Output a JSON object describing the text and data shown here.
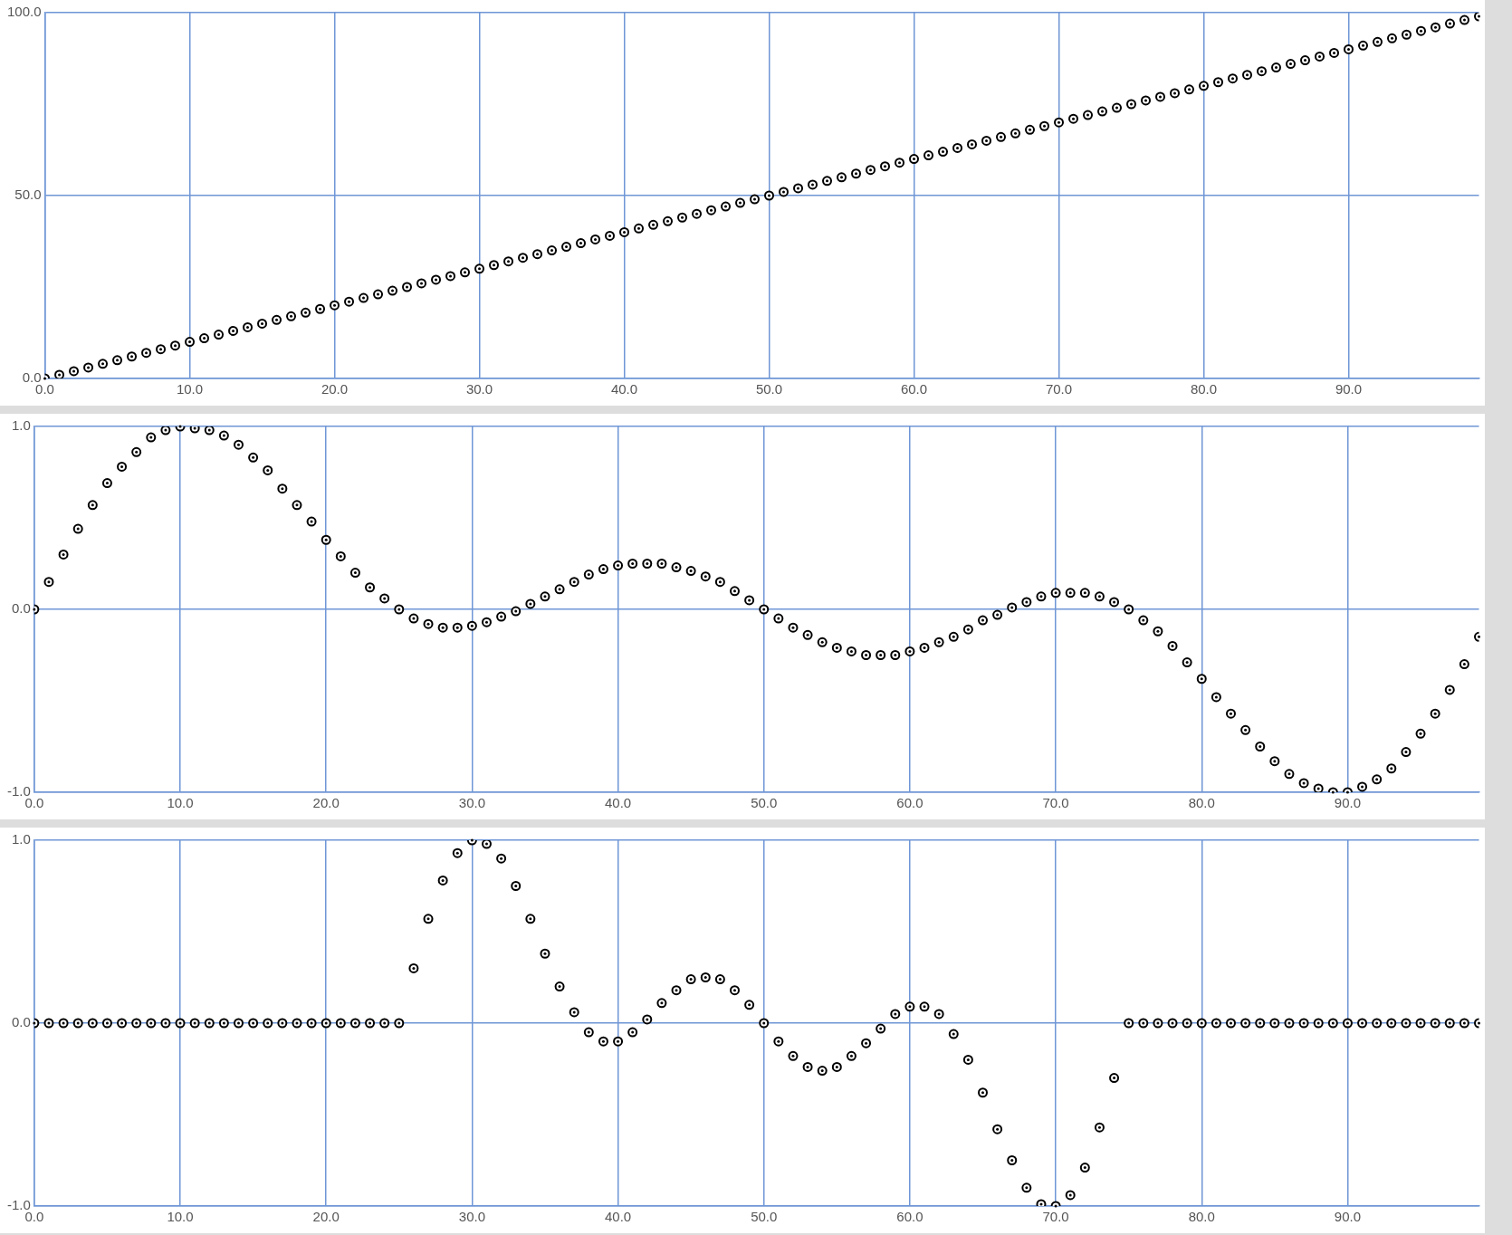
{
  "chart_data": [
    {
      "type": "scatter",
      "color": "#000000",
      "marker": "circle",
      "grid": true,
      "x": [
        0,
        1,
        2,
        3,
        4,
        5,
        6,
        7,
        8,
        9,
        10,
        11,
        12,
        13,
        14,
        15,
        16,
        17,
        18,
        19,
        20,
        21,
        22,
        23,
        24,
        25,
        26,
        27,
        28,
        29,
        30,
        31,
        32,
        33,
        34,
        35,
        36,
        37,
        38,
        39,
        40,
        41,
        42,
        43,
        44,
        45,
        46,
        47,
        48,
        49,
        50,
        51,
        52,
        53,
        54,
        55,
        56,
        57,
        58,
        59,
        60,
        61,
        62,
        63,
        64,
        65,
        66,
        67,
        68,
        69,
        70,
        71,
        72,
        73,
        74,
        75,
        76,
        77,
        78,
        79,
        80,
        81,
        82,
        83,
        84,
        85,
        86,
        87,
        88,
        89,
        90,
        91,
        92,
        93,
        94,
        95,
        96,
        97,
        98,
        99
      ],
      "values": [
        0,
        1,
        2,
        3,
        4,
        5,
        6,
        7,
        8,
        9,
        10,
        11,
        12,
        13,
        14,
        15,
        16,
        17,
        18,
        19,
        20,
        21,
        22,
        23,
        24,
        25,
        26,
        27,
        28,
        29,
        30,
        31,
        32,
        33,
        34,
        35,
        36,
        37,
        38,
        39,
        40,
        41,
        42,
        43,
        44,
        45,
        46,
        47,
        48,
        49,
        50,
        51,
        52,
        53,
        54,
        55,
        56,
        57,
        58,
        59,
        60,
        61,
        62,
        63,
        64,
        65,
        66,
        67,
        68,
        69,
        70,
        71,
        72,
        73,
        74,
        75,
        76,
        77,
        78,
        79,
        80,
        81,
        82,
        83,
        84,
        85,
        86,
        87,
        88,
        89,
        90,
        91,
        92,
        93,
        94,
        95,
        96,
        97,
        98,
        99
      ],
      "xlim": [
        0,
        99
      ],
      "xticks": [
        {
          "value": 0,
          "label": "0.0"
        },
        {
          "value": 10,
          "label": "10.0"
        },
        {
          "value": 20,
          "label": "20.0"
        },
        {
          "value": 30,
          "label": "30.0"
        },
        {
          "value": 40,
          "label": "40.0"
        },
        {
          "value": 50,
          "label": "50.0"
        },
        {
          "value": 60,
          "label": "60.0"
        },
        {
          "value": 70,
          "label": "70.0"
        },
        {
          "value": 80,
          "label": "80.0"
        },
        {
          "value": 90,
          "label": "90.0"
        }
      ],
      "ylim": [
        0,
        100
      ],
      "yticks": [
        {
          "value": 0,
          "label": "0.0"
        },
        {
          "value": 50,
          "label": "50.0"
        },
        {
          "value": 100,
          "label": "100.0"
        }
      ]
    },
    {
      "type": "scatter",
      "color": "#000000",
      "marker": "circle",
      "grid": true,
      "x": [
        0,
        1,
        2,
        3,
        4,
        5,
        6,
        7,
        8,
        9,
        10,
        11,
        12,
        13,
        14,
        15,
        16,
        17,
        18,
        19,
        20,
        21,
        22,
        23,
        24,
        25,
        26,
        27,
        28,
        29,
        30,
        31,
        32,
        33,
        34,
        35,
        36,
        37,
        38,
        39,
        40,
        41,
        42,
        43,
        44,
        45,
        46,
        47,
        48,
        49,
        50,
        51,
        52,
        53,
        54,
        55,
        56,
        57,
        58,
        59,
        60,
        61,
        62,
        63,
        64,
        65,
        66,
        67,
        68,
        69,
        70,
        71,
        72,
        73,
        74,
        75,
        76,
        77,
        78,
        79,
        80,
        81,
        82,
        83,
        84,
        85,
        86,
        87,
        88,
        89,
        90,
        91,
        92,
        93,
        94,
        95,
        96,
        97,
        98,
        99
      ],
      "values": [
        0,
        0.15,
        0.3,
        0.44,
        0.57,
        0.69,
        0.78,
        0.86,
        0.94,
        0.98,
        1.0,
        0.99,
        0.98,
        0.95,
        0.9,
        0.83,
        0.76,
        0.66,
        0.57,
        0.48,
        0.38,
        0.29,
        0.2,
        0.12,
        0.06,
        0,
        -0.05,
        -0.08,
        -0.1,
        -0.1,
        -0.09,
        -0.07,
        -0.04,
        -0.01,
        0.03,
        0.07,
        0.11,
        0.15,
        0.19,
        0.22,
        0.24,
        0.25,
        0.25,
        0.25,
        0.23,
        0.21,
        0.18,
        0.15,
        0.1,
        0.05,
        0,
        -0.05,
        -0.1,
        -0.14,
        -0.18,
        -0.21,
        -0.23,
        -0.25,
        -0.25,
        -0.25,
        -0.23,
        -0.21,
        -0.18,
        -0.15,
        -0.11,
        -0.06,
        -0.03,
        0.01,
        0.04,
        0.07,
        0.09,
        0.09,
        0.09,
        0.07,
        0.04,
        0,
        -0.06,
        -0.12,
        -0.2,
        -0.29,
        -0.38,
        -0.48,
        -0.57,
        -0.66,
        -0.75,
        -0.83,
        -0.9,
        -0.95,
        -0.98,
        -1.0,
        -1.0,
        -0.97,
        -0.93,
        -0.87,
        -0.78,
        -0.68,
        -0.57,
        -0.44,
        -0.3,
        -0.15
      ],
      "xlim": [
        0,
        99
      ],
      "xticks": [
        {
          "value": 0,
          "label": "0.0"
        },
        {
          "value": 10,
          "label": "10.0"
        },
        {
          "value": 20,
          "label": "20.0"
        },
        {
          "value": 30,
          "label": "30.0"
        },
        {
          "value": 40,
          "label": "40.0"
        },
        {
          "value": 50,
          "label": "50.0"
        },
        {
          "value": 60,
          "label": "60.0"
        },
        {
          "value": 70,
          "label": "70.0"
        },
        {
          "value": 80,
          "label": "80.0"
        },
        {
          "value": 90,
          "label": "90.0"
        }
      ],
      "ylim": [
        -1,
        1
      ],
      "yticks": [
        {
          "value": -1,
          "label": "-1.0"
        },
        {
          "value": 0,
          "label": "0.0"
        },
        {
          "value": 1,
          "label": "1.0"
        }
      ]
    },
    {
      "type": "scatter",
      "color": "#000000",
      "marker": "circle",
      "grid": true,
      "x": [
        0,
        1,
        2,
        3,
        4,
        5,
        6,
        7,
        8,
        9,
        10,
        11,
        12,
        13,
        14,
        15,
        16,
        17,
        18,
        19,
        20,
        21,
        22,
        23,
        24,
        25,
        26,
        27,
        28,
        29,
        30,
        31,
        32,
        33,
        34,
        35,
        36,
        37,
        38,
        39,
        40,
        41,
        42,
        43,
        44,
        45,
        46,
        47,
        48,
        49,
        50,
        51,
        52,
        53,
        54,
        55,
        56,
        57,
        58,
        59,
        60,
        61,
        62,
        63,
        64,
        65,
        66,
        67,
        68,
        69,
        70,
        71,
        72,
        73,
        74,
        75,
        76,
        77,
        78,
        79,
        80,
        81,
        82,
        83,
        84,
        85,
        86,
        87,
        88,
        89,
        90,
        91,
        92,
        93,
        94,
        95,
        96,
        97,
        98,
        99
      ],
      "values": [
        0,
        0,
        0,
        0,
        0,
        0,
        0,
        0,
        0,
        0,
        0,
        0,
        0,
        0,
        0,
        0,
        0,
        0,
        0,
        0,
        0,
        0,
        0,
        0,
        0,
        0,
        0.3,
        0.57,
        0.78,
        0.93,
        1.0,
        0.98,
        0.9,
        0.75,
        0.57,
        0.38,
        0.2,
        0.06,
        -0.05,
        -0.1,
        -0.1,
        -0.05,
        0.02,
        0.11,
        0.18,
        0.24,
        0.25,
        0.24,
        0.18,
        0.1,
        0,
        -0.1,
        -0.18,
        -0.24,
        -0.26,
        -0.24,
        -0.18,
        -0.11,
        -0.03,
        0.05,
        0.09,
        0.09,
        0.05,
        -0.06,
        -0.2,
        -0.38,
        -0.58,
        -0.75,
        -0.9,
        -0.99,
        -1.0,
        -0.94,
        -0.79,
        -0.57,
        -0.3,
        0,
        0,
        0,
        0,
        0,
        0,
        0,
        0,
        0,
        0,
        0,
        0,
        0,
        0,
        0,
        0,
        0,
        0,
        0,
        0,
        0,
        0,
        0,
        0,
        0
      ],
      "xlim": [
        0,
        99
      ],
      "xticks": [
        {
          "value": 0,
          "label": "0.0"
        },
        {
          "value": 10,
          "label": "10.0"
        },
        {
          "value": 20,
          "label": "20.0"
        },
        {
          "value": 30,
          "label": "30.0"
        },
        {
          "value": 40,
          "label": "40.0"
        },
        {
          "value": 50,
          "label": "50.0"
        },
        {
          "value": 60,
          "label": "60.0"
        },
        {
          "value": 70,
          "label": "70.0"
        },
        {
          "value": 80,
          "label": "80.0"
        },
        {
          "value": 90,
          "label": "90.0"
        }
      ],
      "ylim": [
        -1,
        1
      ],
      "yticks": [
        {
          "value": -1,
          "label": "-1.0"
        },
        {
          "value": 0,
          "label": "0.0"
        },
        {
          "value": 1,
          "label": "1.0"
        }
      ]
    }
  ]
}
